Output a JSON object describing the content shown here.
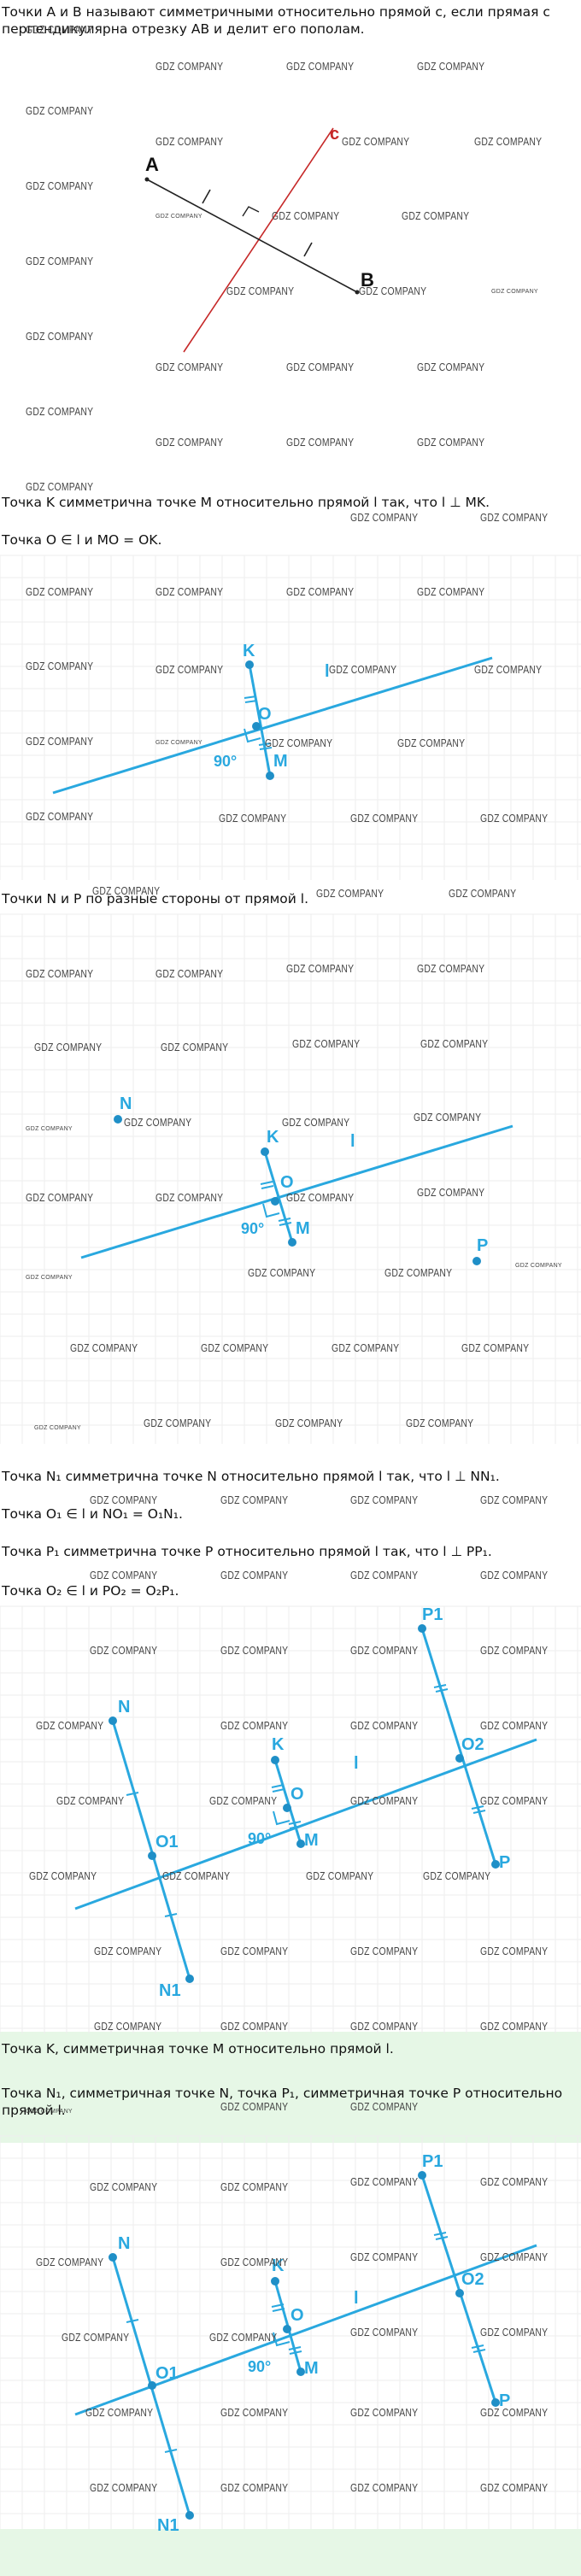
{
  "texts": {
    "t1": "Точки A и B называют симметричными относительно прямой c, если прямая c перпендикулярна отрезку AB и делит его пополам.",
    "t2": "Точка K симметрична точке M относительно прямой l так, что l ⊥ MK.",
    "t3": "Точка O ∈ l и MO = OK.",
    "t4": "Точки N и P по разные стороны от прямой l.",
    "t5": "Точка N₁ симметрична точке N относительно прямой l так, что l ⊥ NN₁.",
    "t6": "Точка O₁ ∈ l и NO₁ = O₁N₁.",
    "t7": "Точка P₁ симметрична точке P относительно прямой l так, что l ⊥ PP₁.",
    "t8": "Точка O₂ ∈ l и PO₂ = O₂P₁.",
    "t9": "Точка K, симметричная точке M относительно прямой l.",
    "t10": "Точка N₁, симметричная точке N, точка P₁, симметричная точке P относительно прямой l."
  },
  "watermark": "GDZ COMPANY",
  "labels": {
    "A": "A",
    "B": "B",
    "c": "c",
    "K": "K",
    "O": "O",
    "M": "M",
    "l": "l",
    "N": "N",
    "P": "P",
    "O1": "O1",
    "O2": "O2",
    "N1": "N1",
    "P1": "P1",
    "angle": "90°"
  },
  "colors": {
    "blue": "#29a8df",
    "dark_blue": "#1f8fc7",
    "red": "#c62828",
    "highlight": "#e6f7e6"
  }
}
